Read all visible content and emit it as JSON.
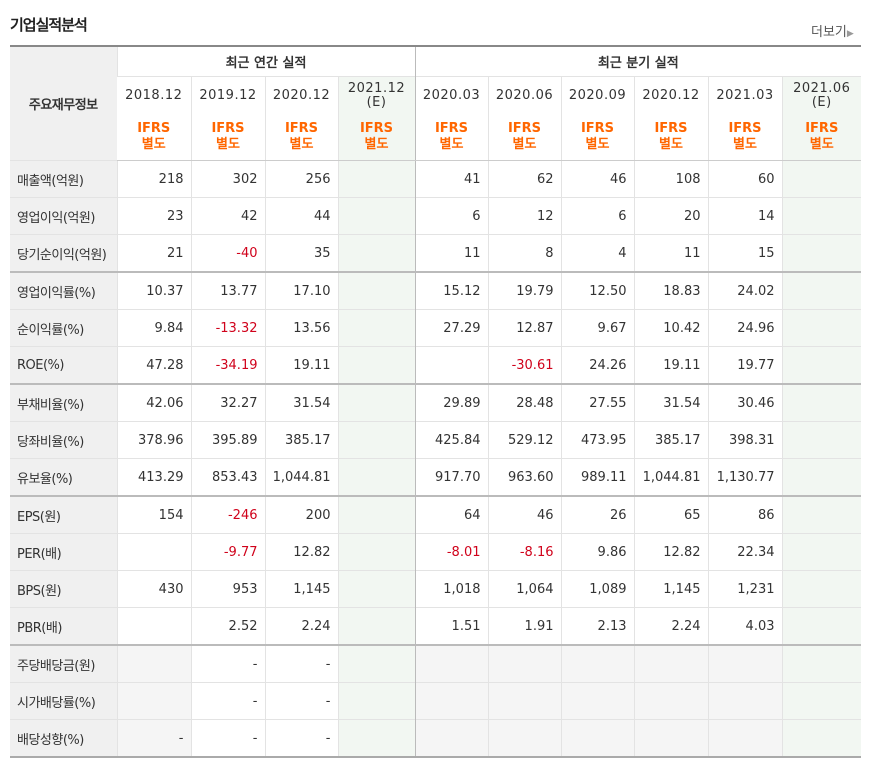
{
  "section_title": "기업실적분석",
  "more_label": "더보기",
  "header": {
    "row_label": "주요재무정보",
    "annual_group": "최근 연간 실적",
    "quarter_group": "최근 분기 실적",
    "annual_periods": [
      "2018.12",
      "2019.12",
      "2020.12",
      "2021.12\n(E)"
    ],
    "quarter_periods": [
      "2020.03",
      "2020.06",
      "2020.09",
      "2020.12",
      "2021.03",
      "2021.06\n(E)"
    ],
    "ifrs_line1": "IFRS",
    "ifrs_line2": "별도"
  },
  "rows": [
    {
      "label": "매출액(억원)",
      "values": [
        "218",
        "302",
        "256",
        "",
        "41",
        "62",
        "46",
        "108",
        "60",
        ""
      ]
    },
    {
      "label": "영업이익(억원)",
      "values": [
        "23",
        "42",
        "44",
        "",
        "6",
        "12",
        "6",
        "20",
        "14",
        ""
      ]
    },
    {
      "label": "당기순이익(억원)",
      "values": [
        "21",
        "-40",
        "35",
        "",
        "11",
        "8",
        "4",
        "11",
        "15",
        ""
      ]
    },
    {
      "label": "영업이익률(%)",
      "values": [
        "10.37",
        "13.77",
        "17.10",
        "",
        "15.12",
        "19.79",
        "12.50",
        "18.83",
        "24.02",
        ""
      ]
    },
    {
      "label": "순이익률(%)",
      "values": [
        "9.84",
        "-13.32",
        "13.56",
        "",
        "27.29",
        "12.87",
        "9.67",
        "10.42",
        "24.96",
        ""
      ]
    },
    {
      "label": "ROE(%)",
      "values": [
        "47.28",
        "-34.19",
        "19.11",
        "",
        "",
        "-30.61",
        "24.26",
        "19.11",
        "19.77",
        ""
      ]
    },
    {
      "label": "부채비율(%)",
      "values": [
        "42.06",
        "32.27",
        "31.54",
        "",
        "29.89",
        "28.48",
        "27.55",
        "31.54",
        "30.46",
        ""
      ]
    },
    {
      "label": "당좌비율(%)",
      "values": [
        "378.96",
        "395.89",
        "385.17",
        "",
        "425.84",
        "529.12",
        "473.95",
        "385.17",
        "398.31",
        ""
      ]
    },
    {
      "label": "유보율(%)",
      "values": [
        "413.29",
        "853.43",
        "1,044.81",
        "",
        "917.70",
        "963.60",
        "989.11",
        "1,044.81",
        "1,130.77",
        ""
      ]
    },
    {
      "label": "EPS(원)",
      "values": [
        "154",
        "-246",
        "200",
        "",
        "64",
        "46",
        "26",
        "65",
        "86",
        ""
      ]
    },
    {
      "label": "PER(배)",
      "values": [
        "",
        "-9.77",
        "12.82",
        "",
        "-8.01",
        "-8.16",
        "9.86",
        "12.82",
        "22.34",
        ""
      ]
    },
    {
      "label": "BPS(원)",
      "values": [
        "430",
        "953",
        "1,145",
        "",
        "1,018",
        "1,064",
        "1,089",
        "1,145",
        "1,231",
        ""
      ]
    },
    {
      "label": "PBR(배)",
      "values": [
        "",
        "2.52",
        "2.24",
        "",
        "1.51",
        "1.91",
        "2.13",
        "2.24",
        "4.03",
        ""
      ]
    },
    {
      "label": "주당배당금(원)",
      "values": [
        "",
        "-",
        "-",
        "",
        "",
        "",
        "",
        "",
        "",
        ""
      ]
    },
    {
      "label": "시가배당률(%)",
      "values": [
        "",
        "-",
        "-",
        "",
        "",
        "",
        "",
        "",
        "",
        ""
      ]
    },
    {
      "label": "배당성향(%)",
      "values": [
        "-",
        "-",
        "-",
        "",
        "",
        "",
        "",
        "",
        "",
        ""
      ]
    }
  ]
}
